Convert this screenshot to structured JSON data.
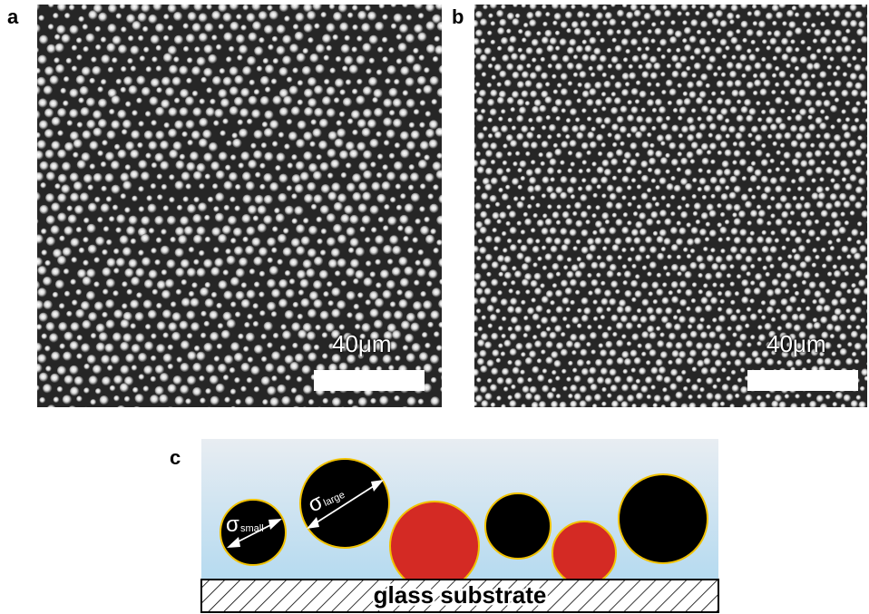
{
  "figure": {
    "panel_a": {
      "letter": "a",
      "scale_text": "40μm"
    },
    "panel_b": {
      "letter": "b",
      "scale_text": "40μm"
    },
    "panel_c": {
      "letter": "c",
      "sigma": "σ",
      "small_sub": "small",
      "large_sub": "large",
      "substrate_label": "glass substrate"
    },
    "colors": {
      "black_particle": "#000000",
      "red_particle": "#d42a24",
      "outline": "#f2c200",
      "fluid_top": "#e8edf2",
      "fluid_bottom": "#b5daf0"
    }
  }
}
